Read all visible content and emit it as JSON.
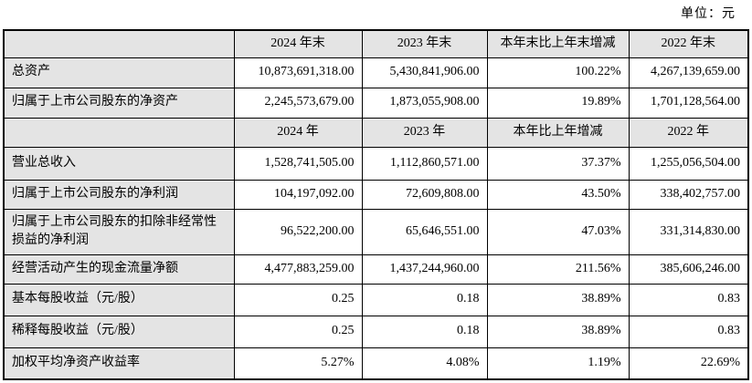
{
  "unit_label": "单位：元",
  "colors": {
    "header-bg": "#e4e4e4",
    "border-color": "#000000"
  },
  "table": {
    "sections": [
      {
        "header": [
          "",
          "2024 年末",
          "2023 年末",
          "本年末比上年末增减",
          "2022 年末"
        ],
        "rows": [
          [
            "总资产",
            "10,873,691,318.00",
            "5,430,841,906.00",
            "100.22%",
            "4,267,139,659.00"
          ],
          [
            "归属于上市公司股东的净资产",
            "2,245,573,679.00",
            "1,873,055,908.00",
            "19.89%",
            "1,701,128,564.00"
          ]
        ]
      },
      {
        "header": [
          "",
          "2024 年",
          "2023 年",
          "本年比上年增减",
          "2022 年"
        ],
        "rows": [
          [
            "营业总收入",
            "1,528,741,505.00",
            "1,112,860,571.00",
            "37.37%",
            "1,255,056,504.00"
          ],
          [
            "归属于上市公司股东的净利润",
            "104,197,092.00",
            "72,609,808.00",
            "43.50%",
            "338,402,757.00"
          ],
          [
            "归属于上市公司股东的扣除非经常性损益的净利润",
            "96,522,200.00",
            "65,646,551.00",
            "47.03%",
            "331,314,830.00"
          ],
          [
            "经营活动产生的现金流量净额",
            "4,477,883,259.00",
            "1,437,244,960.00",
            "211.56%",
            "385,606,246.00"
          ],
          [
            "基本每股收益（元/股）",
            "0.25",
            "0.18",
            "38.89%",
            "0.83"
          ],
          [
            "稀释每股收益（元/股）",
            "0.25",
            "0.18",
            "38.89%",
            "0.83"
          ],
          [
            "加权平均净资产收益率",
            "5.27%",
            "4.08%",
            "1.19%",
            "22.69%"
          ]
        ]
      }
    ]
  }
}
